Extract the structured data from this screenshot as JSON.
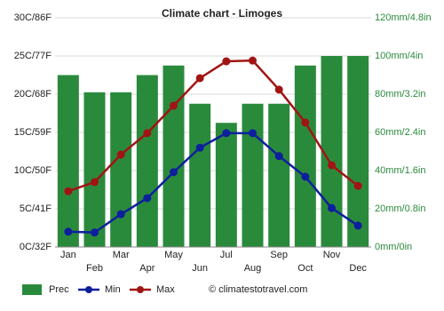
{
  "chart_data": {
    "type": "bar",
    "title": "Climate chart - Limoges",
    "categories": [
      "Jan",
      "Feb",
      "Mar",
      "Apr",
      "May",
      "Jun",
      "Jul",
      "Aug",
      "Sep",
      "Oct",
      "Nov",
      "Dec"
    ],
    "series": [
      {
        "name": "Prec",
        "type": "bar",
        "axis": "y2",
        "color": "#2a8a3c",
        "values": [
          90,
          81,
          81,
          90,
          95,
          75,
          65,
          75,
          75,
          95,
          100,
          100
        ]
      },
      {
        "name": "Min",
        "type": "line",
        "color": "#0d1f9c",
        "values": [
          2.0,
          1.9,
          4.3,
          6.4,
          9.8,
          13.0,
          14.9,
          14.9,
          11.9,
          9.2,
          5.1,
          2.8
        ]
      },
      {
        "name": "Max",
        "type": "line",
        "color": "#a11414",
        "values": [
          7.3,
          8.5,
          12.1,
          14.9,
          18.5,
          22.1,
          24.3,
          24.4,
          20.6,
          16.3,
          10.7,
          8.0
        ]
      }
    ],
    "ylim": [
      0,
      30
    ],
    "yticks": [
      {
        "value": 0,
        "label": "0C/32F"
      },
      {
        "value": 5,
        "label": "5C/41F"
      },
      {
        "value": 10,
        "label": "10C/50F"
      },
      {
        "value": 15,
        "label": "15C/59F"
      },
      {
        "value": 20,
        "label": "20C/68F"
      },
      {
        "value": 25,
        "label": "25C/77F"
      },
      {
        "value": 30,
        "label": "30C/86F"
      }
    ],
    "y2lim": [
      0,
      120
    ],
    "y2ticks": [
      {
        "value": 0,
        "label": "0mm/0in"
      },
      {
        "value": 20,
        "label": "20mm/0.8in"
      },
      {
        "value": 40,
        "label": "40mm/1.6in"
      },
      {
        "value": 60,
        "label": "60mm/2.4in"
      },
      {
        "value": 80,
        "label": "80mm/3.2in"
      },
      {
        "value": 100,
        "label": "100mm/4in"
      },
      {
        "value": 120,
        "label": "120mm/4.8in"
      }
    ],
    "grid": true,
    "legend": "bottom",
    "credit": "© climatestotravel.com"
  }
}
